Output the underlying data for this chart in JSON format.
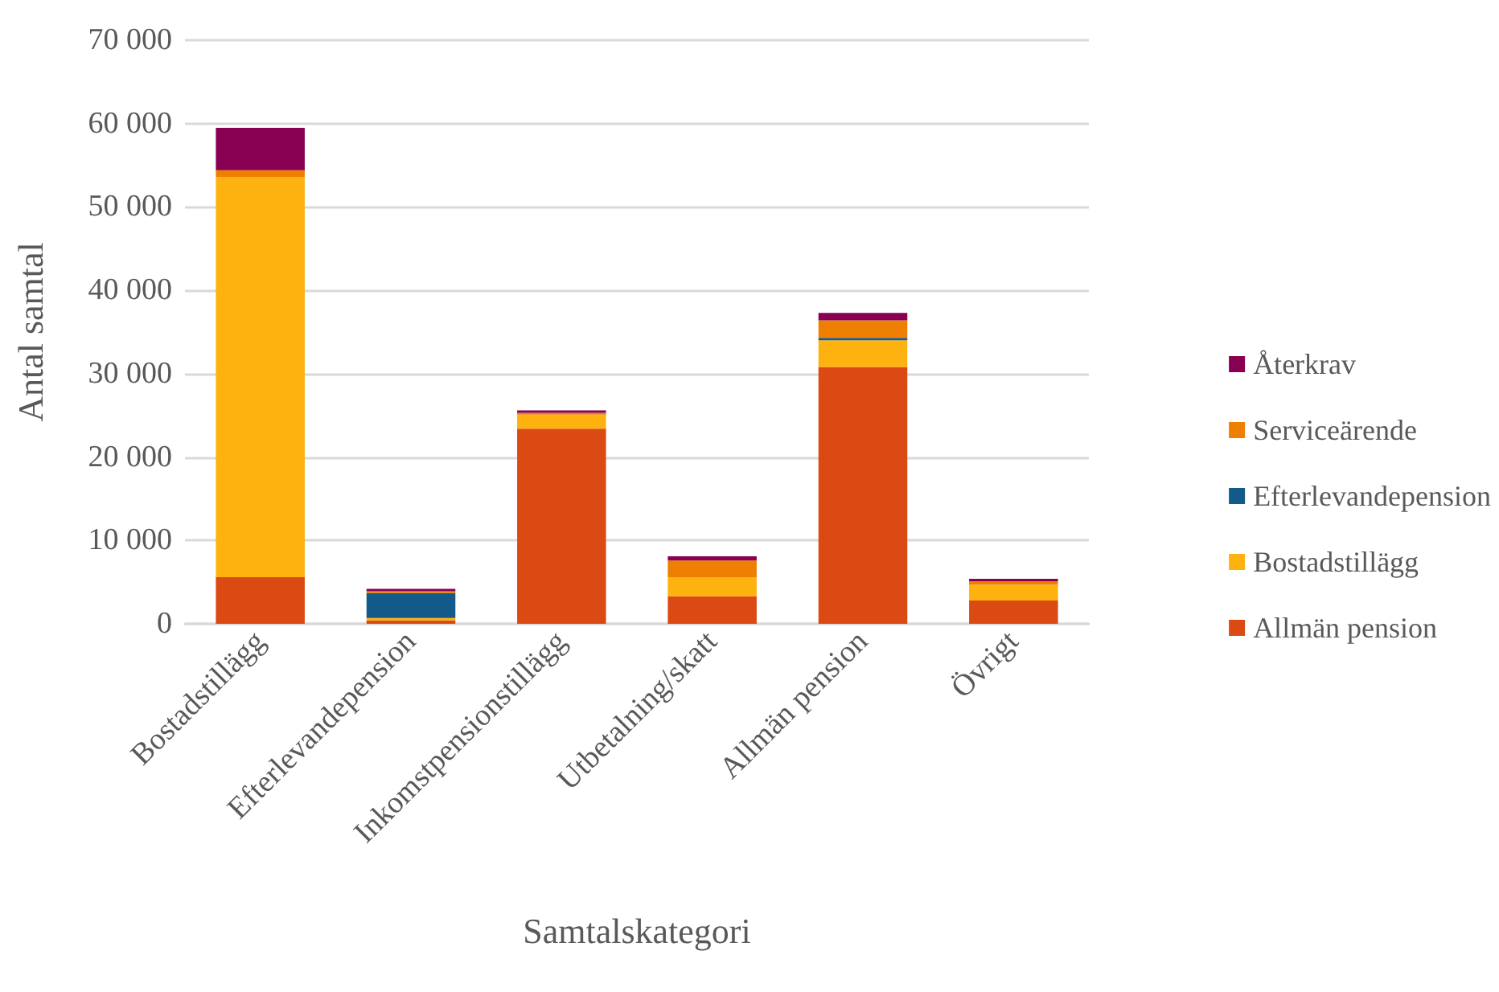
{
  "chart_data": {
    "type": "bar",
    "stacked": true,
    "xlabel": "Samtalskategori",
    "ylabel": "Antal samtal",
    "categories": [
      "Bostadstillägg",
      "Efterlevandepension",
      "Inkomstpensionstillägg",
      "Utbetalning/skatt",
      "Allmän pension",
      "Övrigt"
    ],
    "series": [
      {
        "name": "Allmän pension",
        "color": "#dc4a14",
        "values": [
          5600,
          400,
          23400,
          3300,
          30800,
          2800
        ]
      },
      {
        "name": "Bostadstillägg",
        "color": "#fdb210",
        "values": [
          48000,
          300,
          1700,
          2300,
          3200,
          1900
        ]
      },
      {
        "name": "Efterlevandepension",
        "color": "#135a8a",
        "values": [
          0,
          3000,
          0,
          0,
          300,
          0
        ]
      },
      {
        "name": "Serviceärende",
        "color": "#ee7f00",
        "values": [
          800,
          200,
          200,
          2000,
          2100,
          400
        ]
      },
      {
        "name": "Återkrav",
        "color": "#870051",
        "values": [
          5100,
          300,
          300,
          500,
          900,
          300
        ]
      }
    ],
    "ylim": [
      0,
      70000
    ],
    "yticks": [
      0,
      10000,
      20000,
      30000,
      40000,
      50000,
      60000,
      70000
    ],
    "grid": "y",
    "legend": "right"
  }
}
